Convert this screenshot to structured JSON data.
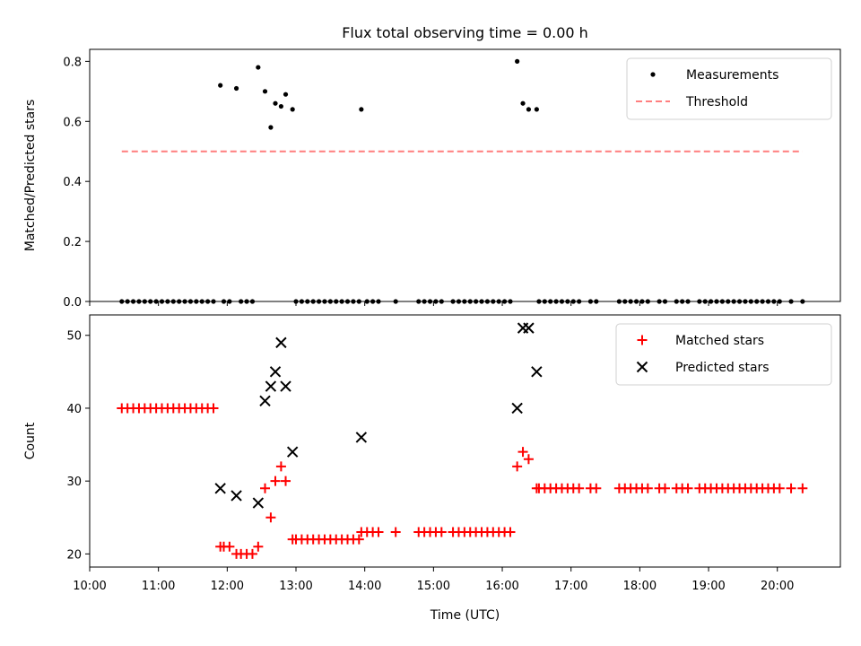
{
  "chart_data": [
    {
      "type": "scatter",
      "title": "Flux total observing time = 0.00 h",
      "xlabel": "",
      "ylabel": "Matched/Predicted stars",
      "xlim": [
        "10:00",
        "20:55"
      ],
      "ylim": [
        0,
        0.84
      ],
      "yticks": [
        "0.0",
        "0.2",
        "0.4",
        "0.6",
        "0.8"
      ],
      "grid": false,
      "legend_position": "top-right",
      "series": [
        {
          "name": "Measurements",
          "marker": "dot",
          "color": "#000000",
          "x": [
            "11:54",
            "12:08",
            "12:27",
            "12:33",
            "12:38",
            "12:42",
            "12:47",
            "12:51",
            "12:57",
            "13:57",
            "16:13",
            "16:18",
            "16:23",
            "16:30",
            "10:28",
            "10:33",
            "10:38",
            "10:43",
            "10:48",
            "10:53",
            "10:58",
            "11:03",
            "11:08",
            "11:13",
            "11:18",
            "11:23",
            "11:28",
            "11:33",
            "11:38",
            "11:43",
            "11:48",
            "11:57",
            "12:02",
            "12:12",
            "12:17",
            "12:22",
            "13:00",
            "13:05",
            "13:10",
            "13:15",
            "13:20",
            "13:25",
            "13:30",
            "13:35",
            "13:40",
            "13:45",
            "13:50",
            "13:55",
            "14:02",
            "14:07",
            "14:12",
            "14:27",
            "14:47",
            "14:52",
            "14:57",
            "15:02",
            "15:07",
            "15:17",
            "15:22",
            "15:27",
            "15:32",
            "15:37",
            "15:42",
            "15:47",
            "15:52",
            "15:57",
            "16:02",
            "16:07",
            "16:32",
            "16:37",
            "16:42",
            "16:47",
            "16:52",
            "16:57",
            "17:02",
            "17:07",
            "17:17",
            "17:22",
            "17:42",
            "17:47",
            "17:52",
            "17:57",
            "18:02",
            "18:07",
            "18:17",
            "18:22",
            "18:32",
            "18:37",
            "18:42",
            "18:52",
            "18:57",
            "19:02",
            "19:07",
            "19:12",
            "19:17",
            "19:22",
            "19:27",
            "19:32",
            "19:37",
            "19:42",
            "19:47",
            "19:52",
            "19:57",
            "20:02",
            "20:12",
            "20:22"
          ],
          "y": [
            0.72,
            0.71,
            0.78,
            0.7,
            0.58,
            0.66,
            0.65,
            0.69,
            0.64,
            0.64,
            0.8,
            0.66,
            0.64,
            0.64,
            0,
            0,
            0,
            0,
            0,
            0,
            0,
            0,
            0,
            0,
            0,
            0,
            0,
            0,
            0,
            0,
            0,
            0,
            0,
            0,
            0,
            0,
            0,
            0,
            0,
            0,
            0,
            0,
            0,
            0,
            0,
            0,
            0,
            0,
            0,
            0,
            0,
            0,
            0,
            0,
            0,
            0,
            0,
            0,
            0,
            0,
            0,
            0,
            0,
            0,
            0,
            0,
            0,
            0,
            0,
            0,
            0,
            0,
            0,
            0,
            0,
            0,
            0,
            0,
            0,
            0,
            0,
            0,
            0,
            0,
            0,
            0,
            0,
            0,
            0,
            0,
            0,
            0,
            0,
            0,
            0,
            0,
            0,
            0,
            0,
            0,
            0,
            0,
            0,
            0,
            0,
            0
          ]
        },
        {
          "name": "Threshold",
          "style": "dashed-line",
          "color": "#ff7f7f",
          "x": [
            "10:28",
            "20:22"
          ],
          "y": [
            0.5,
            0.5
          ]
        }
      ]
    },
    {
      "type": "scatter",
      "title": "",
      "xlabel": "Time (UTC)",
      "ylabel": "Count",
      "xlim": [
        "10:00",
        "20:55"
      ],
      "ylim": [
        18.2,
        52.8
      ],
      "xticks": [
        "10:00",
        "11:00",
        "12:00",
        "13:00",
        "14:00",
        "15:00",
        "16:00",
        "17:00",
        "18:00",
        "19:00",
        "20:00"
      ],
      "yticks": [
        "20",
        "30",
        "40",
        "50"
      ],
      "grid": false,
      "legend_position": "top-right",
      "series": [
        {
          "name": "Matched stars",
          "marker": "plus",
          "color": "#ff0000",
          "x": [
            "10:28",
            "10:33",
            "10:38",
            "10:43",
            "10:48",
            "10:53",
            "10:58",
            "11:03",
            "11:08",
            "11:13",
            "11:18",
            "11:23",
            "11:28",
            "11:33",
            "11:38",
            "11:43",
            "11:48",
            "11:54",
            "11:57",
            "12:02",
            "12:08",
            "12:12",
            "12:17",
            "12:22",
            "12:27",
            "12:33",
            "12:38",
            "12:42",
            "12:47",
            "12:51",
            "12:57",
            "13:00",
            "13:05",
            "13:10",
            "13:15",
            "13:20",
            "13:25",
            "13:30",
            "13:35",
            "13:40",
            "13:45",
            "13:50",
            "13:55",
            "13:57",
            "14:02",
            "14:07",
            "14:12",
            "14:27",
            "14:47",
            "14:52",
            "14:57",
            "15:02",
            "15:07",
            "15:17",
            "15:22",
            "15:27",
            "15:32",
            "15:37",
            "15:42",
            "15:47",
            "15:52",
            "15:57",
            "16:02",
            "16:07",
            "16:13",
            "16:18",
            "16:23",
            "16:30",
            "16:32",
            "16:37",
            "16:42",
            "16:47",
            "16:52",
            "16:57",
            "17:02",
            "17:07",
            "17:17",
            "17:22",
            "17:42",
            "17:47",
            "17:52",
            "17:57",
            "18:02",
            "18:07",
            "18:17",
            "18:22",
            "18:32",
            "18:37",
            "18:42",
            "18:52",
            "18:57",
            "19:02",
            "19:07",
            "19:12",
            "19:17",
            "19:22",
            "19:27",
            "19:32",
            "19:37",
            "19:42",
            "19:47",
            "19:52",
            "19:57",
            "20:02",
            "20:12",
            "20:22"
          ],
          "y": [
            40,
            40,
            40,
            40,
            40,
            40,
            40,
            40,
            40,
            40,
            40,
            40,
            40,
            40,
            40,
            40,
            40,
            21,
            21,
            21,
            20,
            20,
            20,
            20,
            21,
            29,
            25,
            30,
            32,
            30,
            22,
            22,
            22,
            22,
            22,
            22,
            22,
            22,
            22,
            22,
            22,
            22,
            22,
            23,
            23,
            23,
            23,
            23,
            23,
            23,
            23,
            23,
            23,
            23,
            23,
            23,
            23,
            23,
            23,
            23,
            23,
            23,
            23,
            23,
            32,
            34,
            33,
            29,
            29,
            29,
            29,
            29,
            29,
            29,
            29,
            29,
            29,
            29,
            29,
            29,
            29,
            29,
            29,
            29,
            29,
            29,
            29,
            29,
            29,
            29,
            29,
            29,
            29,
            29,
            29,
            29,
            29,
            29,
            29,
            29,
            29,
            29,
            29,
            29,
            29,
            29
          ]
        },
        {
          "name": "Predicted stars",
          "marker": "x",
          "color": "#000000",
          "x": [
            "11:54",
            "12:08",
            "12:27",
            "12:33",
            "12:38",
            "12:42",
            "12:47",
            "12:51",
            "12:57",
            "13:57",
            "16:13",
            "16:18",
            "16:23",
            "16:30"
          ],
          "y": [
            29,
            28,
            27,
            41,
            43,
            45,
            49,
            43,
            34,
            36,
            40,
            51,
            51,
            45
          ]
        }
      ]
    }
  ]
}
